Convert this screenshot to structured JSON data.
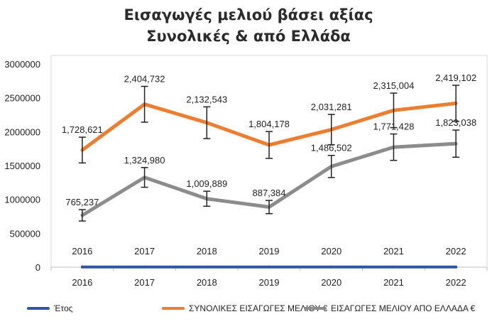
{
  "chart_data": {
    "type": "line",
    "title": [
      "Εισαγωγές μελιού βάσει αξίας",
      "Συνολικές & από Ελλάδα"
    ],
    "xlabel": "",
    "ylabel": "",
    "categories": [
      "2016",
      "2017",
      "2018",
      "2019",
      "2020",
      "2021",
      "2022"
    ],
    "ylim": [
      0,
      3000000
    ],
    "yticks": [
      "0",
      "500000",
      "1000000",
      "1500000",
      "2000000",
      "2500000",
      "3000000"
    ],
    "grid": false,
    "legend_position": "bottom",
    "error_bars": true,
    "series": [
      {
        "name": "Έτος",
        "color": "#2f55a4",
        "values": [
          2016,
          2017,
          2018,
          2019,
          2020,
          2021,
          2022
        ],
        "labels": [
          "2016",
          "2017",
          "2018",
          "2019",
          "2020",
          "2021",
          "2022"
        ]
      },
      {
        "name": "ΣΥΝΟΛΙΚΕΣ ΕΙΣΑΓΩΓΕΣ ΜΕΛΙΟΥ €",
        "color": "#ed7d31",
        "values": [
          1728621,
          2404732,
          2132543,
          1804178,
          2031281,
          2315004,
          2419102
        ],
        "labels": [
          "1,728,621",
          "2,404,732",
          "2,132,543",
          "1,804,178",
          "2,031,281",
          "2,315,004",
          "2,419,102"
        ]
      },
      {
        "name": "ΕΙΣΑΓΩΓΕΣ ΜΕΛΙΟΥ ΑΠΟ ΕΛΛΑΔΑ €",
        "color": "#8c8c8c",
        "values": [
          765237,
          1324980,
          1009889,
          887384,
          1486502,
          1771428,
          1823038
        ],
        "labels": [
          "765,237",
          "1,324,980",
          "1,009,889",
          "887,384",
          "1,486,502",
          "1,771,428",
          "1,823,038"
        ]
      }
    ]
  }
}
